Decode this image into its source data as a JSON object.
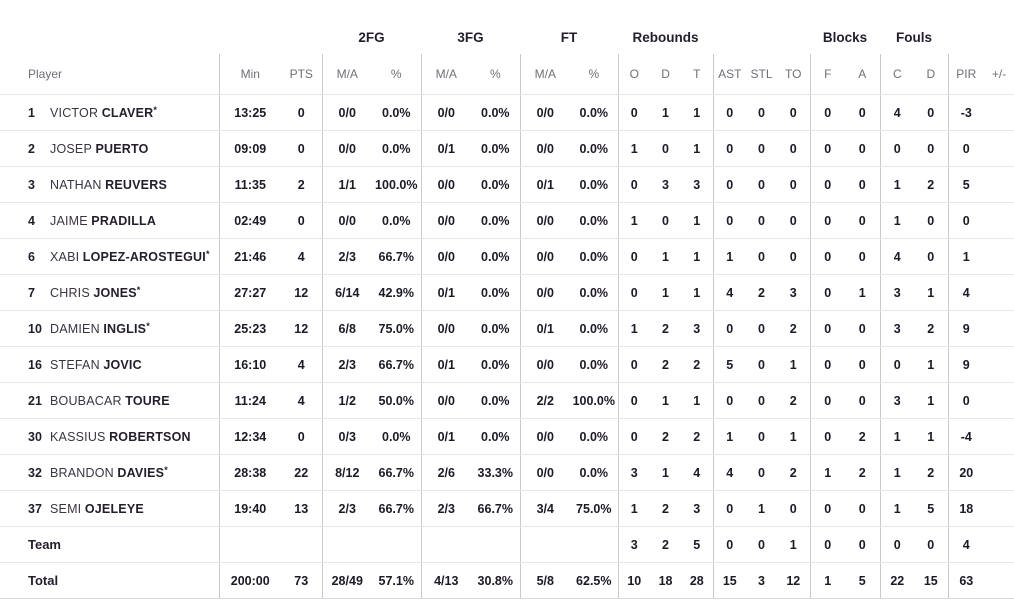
{
  "colors": {
    "background": "#ffffff",
    "group_header_text": "#241d2b",
    "sub_header_text": "#6f6f78",
    "data_text": "#1e1926",
    "divider": "#c9c9cc",
    "row_line": "#e8e8ea"
  },
  "table": {
    "group_headers": {
      "fg2": "2FG",
      "fg3": "3FG",
      "ft": "FT",
      "rebounds": "Rebounds",
      "blocks": "Blocks",
      "fouls": "Fouls"
    },
    "columns": {
      "player": "Player",
      "min": "Min",
      "pts": "PTS",
      "ma": "M/A",
      "pct": "%",
      "reb_o": "O",
      "reb_d": "D",
      "reb_t": "T",
      "ast": "AST",
      "stl": "STL",
      "to": "TO",
      "blk_f": "F",
      "blk_a": "A",
      "foul_c": "C",
      "foul_d": "D",
      "pir": "PIR",
      "pm": "+/-"
    },
    "rows": [
      {
        "number": "1",
        "first": "VICTOR",
        "last": "CLAVER",
        "starter": "*",
        "min": "13:25",
        "pts": "0",
        "fg2_ma": "0/0",
        "fg2_pct": "0.0%",
        "fg3_ma": "0/0",
        "fg3_pct": "0.0%",
        "ft_ma": "0/0",
        "ft_pct": "0.0%",
        "reb_o": "0",
        "reb_d": "1",
        "reb_t": "1",
        "ast": "0",
        "stl": "0",
        "to": "0",
        "blk_f": "0",
        "blk_a": "0",
        "foul_c": "4",
        "foul_d": "0",
        "pir": "-3",
        "pm": ""
      },
      {
        "number": "2",
        "first": "JOSEP",
        "last": "PUERTO",
        "starter": "",
        "min": "09:09",
        "pts": "0",
        "fg2_ma": "0/0",
        "fg2_pct": "0.0%",
        "fg3_ma": "0/1",
        "fg3_pct": "0.0%",
        "ft_ma": "0/0",
        "ft_pct": "0.0%",
        "reb_o": "1",
        "reb_d": "0",
        "reb_t": "1",
        "ast": "0",
        "stl": "0",
        "to": "0",
        "blk_f": "0",
        "blk_a": "0",
        "foul_c": "0",
        "foul_d": "0",
        "pir": "0",
        "pm": ""
      },
      {
        "number": "3",
        "first": "NATHAN",
        "last": "REUVERS",
        "starter": "",
        "min": "11:35",
        "pts": "2",
        "fg2_ma": "1/1",
        "fg2_pct": "100.0%",
        "fg3_ma": "0/0",
        "fg3_pct": "0.0%",
        "ft_ma": "0/1",
        "ft_pct": "0.0%",
        "reb_o": "0",
        "reb_d": "3",
        "reb_t": "3",
        "ast": "0",
        "stl": "0",
        "to": "0",
        "blk_f": "0",
        "blk_a": "0",
        "foul_c": "1",
        "foul_d": "2",
        "pir": "5",
        "pm": ""
      },
      {
        "number": "4",
        "first": "JAIME",
        "last": "PRADILLA",
        "starter": "",
        "min": "02:49",
        "pts": "0",
        "fg2_ma": "0/0",
        "fg2_pct": "0.0%",
        "fg3_ma": "0/0",
        "fg3_pct": "0.0%",
        "ft_ma": "0/0",
        "ft_pct": "0.0%",
        "reb_o": "1",
        "reb_d": "0",
        "reb_t": "1",
        "ast": "0",
        "stl": "0",
        "to": "0",
        "blk_f": "0",
        "blk_a": "0",
        "foul_c": "1",
        "foul_d": "0",
        "pir": "0",
        "pm": ""
      },
      {
        "number": "6",
        "first": "XABI",
        "last": "LOPEZ-AROSTEGUI",
        "starter": "*",
        "min": "21:46",
        "pts": "4",
        "fg2_ma": "2/3",
        "fg2_pct": "66.7%",
        "fg3_ma": "0/0",
        "fg3_pct": "0.0%",
        "ft_ma": "0/0",
        "ft_pct": "0.0%",
        "reb_o": "0",
        "reb_d": "1",
        "reb_t": "1",
        "ast": "1",
        "stl": "0",
        "to": "0",
        "blk_f": "0",
        "blk_a": "0",
        "foul_c": "4",
        "foul_d": "0",
        "pir": "1",
        "pm": ""
      },
      {
        "number": "7",
        "first": "CHRIS",
        "last": "JONES",
        "starter": "*",
        "min": "27:27",
        "pts": "12",
        "fg2_ma": "6/14",
        "fg2_pct": "42.9%",
        "fg3_ma": "0/1",
        "fg3_pct": "0.0%",
        "ft_ma": "0/0",
        "ft_pct": "0.0%",
        "reb_o": "0",
        "reb_d": "1",
        "reb_t": "1",
        "ast": "4",
        "stl": "2",
        "to": "3",
        "blk_f": "0",
        "blk_a": "1",
        "foul_c": "3",
        "foul_d": "1",
        "pir": "4",
        "pm": ""
      },
      {
        "number": "10",
        "first": "DAMIEN",
        "last": "INGLIS",
        "starter": "*",
        "min": "25:23",
        "pts": "12",
        "fg2_ma": "6/8",
        "fg2_pct": "75.0%",
        "fg3_ma": "0/0",
        "fg3_pct": "0.0%",
        "ft_ma": "0/1",
        "ft_pct": "0.0%",
        "reb_o": "1",
        "reb_d": "2",
        "reb_t": "3",
        "ast": "0",
        "stl": "0",
        "to": "2",
        "blk_f": "0",
        "blk_a": "0",
        "foul_c": "3",
        "foul_d": "2",
        "pir": "9",
        "pm": ""
      },
      {
        "number": "16",
        "first": "STEFAN",
        "last": "JOVIC",
        "starter": "",
        "min": "16:10",
        "pts": "4",
        "fg2_ma": "2/3",
        "fg2_pct": "66.7%",
        "fg3_ma": "0/1",
        "fg3_pct": "0.0%",
        "ft_ma": "0/0",
        "ft_pct": "0.0%",
        "reb_o": "0",
        "reb_d": "2",
        "reb_t": "2",
        "ast": "5",
        "stl": "0",
        "to": "1",
        "blk_f": "0",
        "blk_a": "0",
        "foul_c": "0",
        "foul_d": "1",
        "pir": "9",
        "pm": ""
      },
      {
        "number": "21",
        "first": "BOUBACAR",
        "last": "TOURE",
        "starter": "",
        "min": "11:24",
        "pts": "4",
        "fg2_ma": "1/2",
        "fg2_pct": "50.0%",
        "fg3_ma": "0/0",
        "fg3_pct": "0.0%",
        "ft_ma": "2/2",
        "ft_pct": "100.0%",
        "reb_o": "0",
        "reb_d": "1",
        "reb_t": "1",
        "ast": "0",
        "stl": "0",
        "to": "2",
        "blk_f": "0",
        "blk_a": "0",
        "foul_c": "3",
        "foul_d": "1",
        "pir": "0",
        "pm": ""
      },
      {
        "number": "30",
        "first": "KASSIUS",
        "last": "ROBERTSON",
        "starter": "",
        "min": "12:34",
        "pts": "0",
        "fg2_ma": "0/3",
        "fg2_pct": "0.0%",
        "fg3_ma": "0/1",
        "fg3_pct": "0.0%",
        "ft_ma": "0/0",
        "ft_pct": "0.0%",
        "reb_o": "0",
        "reb_d": "2",
        "reb_t": "2",
        "ast": "1",
        "stl": "0",
        "to": "1",
        "blk_f": "0",
        "blk_a": "2",
        "foul_c": "1",
        "foul_d": "1",
        "pir": "-4",
        "pm": ""
      },
      {
        "number": "32",
        "first": "BRANDON",
        "last": "DAVIES",
        "starter": "*",
        "min": "28:38",
        "pts": "22",
        "fg2_ma": "8/12",
        "fg2_pct": "66.7%",
        "fg3_ma": "2/6",
        "fg3_pct": "33.3%",
        "ft_ma": "0/0",
        "ft_pct": "0.0%",
        "reb_o": "3",
        "reb_d": "1",
        "reb_t": "4",
        "ast": "4",
        "stl": "0",
        "to": "2",
        "blk_f": "1",
        "blk_a": "2",
        "foul_c": "1",
        "foul_d": "2",
        "pir": "20",
        "pm": ""
      },
      {
        "number": "37",
        "first": "SEMI",
        "last": "OJELEYE",
        "starter": "",
        "min": "19:40",
        "pts": "13",
        "fg2_ma": "2/3",
        "fg2_pct": "66.7%",
        "fg3_ma": "2/3",
        "fg3_pct": "66.7%",
        "ft_ma": "3/4",
        "ft_pct": "75.0%",
        "reb_o": "1",
        "reb_d": "2",
        "reb_t": "3",
        "ast": "0",
        "stl": "1",
        "to": "0",
        "blk_f": "0",
        "blk_a": "0",
        "foul_c": "1",
        "foul_d": "5",
        "pir": "18",
        "pm": ""
      },
      {
        "label": "Team",
        "min": "",
        "pts": "",
        "fg2_ma": "",
        "fg2_pct": "",
        "fg3_ma": "",
        "fg3_pct": "",
        "ft_ma": "",
        "ft_pct": "",
        "reb_o": "3",
        "reb_d": "2",
        "reb_t": "5",
        "ast": "0",
        "stl": "0",
        "to": "1",
        "blk_f": "0",
        "blk_a": "0",
        "foul_c": "0",
        "foul_d": "0",
        "pir": "4",
        "pm": ""
      },
      {
        "label": "Total",
        "min": "200:00",
        "pts": "73",
        "fg2_ma": "28/49",
        "fg2_pct": "57.1%",
        "fg3_ma": "4/13",
        "fg3_pct": "30.8%",
        "ft_ma": "5/8",
        "ft_pct": "62.5%",
        "reb_o": "10",
        "reb_d": "18",
        "reb_t": "28",
        "ast": "15",
        "stl": "3",
        "to": "12",
        "blk_f": "1",
        "blk_a": "5",
        "foul_c": "22",
        "foul_d": "15",
        "pir": "63",
        "pm": ""
      }
    ]
  }
}
